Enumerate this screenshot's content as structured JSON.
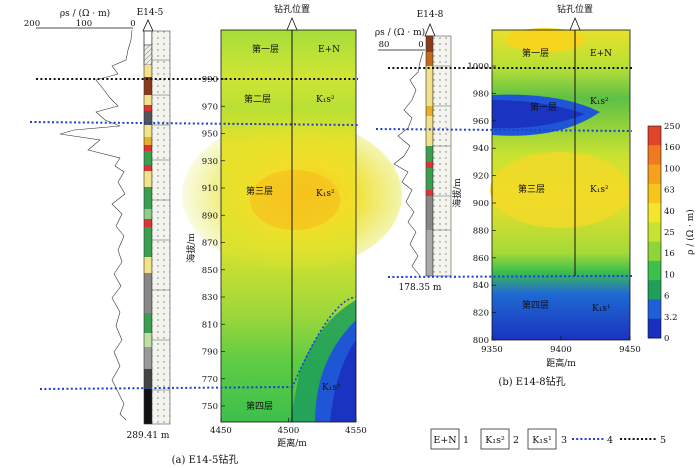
{
  "panel_a": {
    "well_name": "E14-5",
    "rho_axis_label": "ρs / (Ω · m)",
    "rho_ticks": [
      "200",
      "100",
      "0"
    ],
    "bottom_depth": "289.41 m",
    "borehole_label": "钻孔位置",
    "xlabel": "距离/m",
    "ylabel": "海拔/m",
    "x_ticks": [
      "4450",
      "4500",
      "4550"
    ],
    "y_ticks": [
      "990",
      "970",
      "950",
      "930",
      "910",
      "890",
      "870",
      "850",
      "830",
      "810",
      "790",
      "770",
      "750"
    ],
    "layer_labels": [
      "第一层",
      "第二层",
      "第三层",
      "第四层"
    ],
    "unit_labels": [
      "E+N",
      "K₁s²",
      "K₁s²",
      "K₁s¹"
    ],
    "caption": "(a)  E14-5钻孔"
  },
  "panel_b": {
    "well_name": "E14-8",
    "rho_axis_label": "ρs / (Ω · m)",
    "rho_ticks": [
      "80",
      "0"
    ],
    "bottom_depth": "178.35 m",
    "borehole_label": "钻孔位置",
    "xlabel": "距高/m",
    "ylabel": "海拔/m",
    "x_ticks": [
      "9350",
      "9400",
      "9450"
    ],
    "y_ticks": [
      "1000",
      "980",
      "960",
      "940",
      "920",
      "900",
      "880",
      "860",
      "840",
      "820",
      "800"
    ],
    "layer_labels": [
      "第一层",
      "第一层",
      "第三层",
      "第四层"
    ],
    "unit_labels": [
      "E+N",
      "K₁s²",
      "K₁s²",
      "K₁s¹"
    ],
    "caption": "(b)  E14-8钻孔"
  },
  "colorbar": {
    "label": "ρ / (Ω · m)",
    "ticks": [
      "250",
      "160",
      "100",
      "63",
      "40",
      "25",
      "16",
      "10",
      "6",
      "3.2",
      "0"
    ],
    "colors": [
      "#e0452a",
      "#f07a20",
      "#f5a11e",
      "#f7c51c",
      "#f2e52a",
      "#c6e232",
      "#8dd63a",
      "#3fc04c",
      "#1f9f5a",
      "#1f5fd8",
      "#1a2fc0"
    ]
  },
  "legend": {
    "items": [
      {
        "box": "E+N",
        "num": "1"
      },
      {
        "box": "K₁s²",
        "num": "2"
      },
      {
        "box": "K₁s¹",
        "num": "3"
      },
      {
        "num": "4"
      },
      {
        "num": "5"
      }
    ]
  }
}
